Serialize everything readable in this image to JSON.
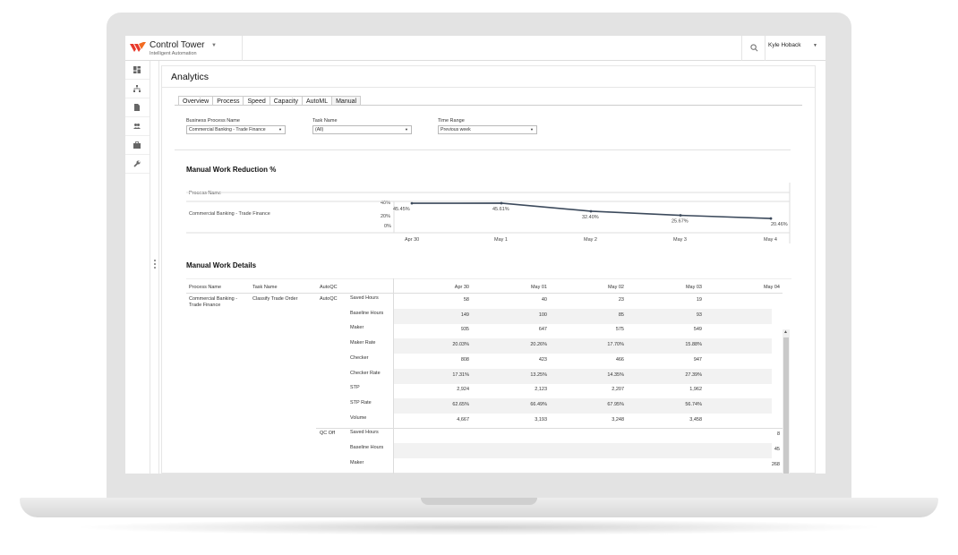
{
  "app": {
    "name": "Control Tower",
    "subtitle": "Intelligent Automation",
    "user": "Kyle Hoback"
  },
  "page": {
    "title": "Analytics",
    "tabs": [
      "Overview",
      "Process",
      "Speed",
      "Capacity",
      "AutoML",
      "Manual"
    ],
    "active_tab": "Manual"
  },
  "filters": {
    "business_process": {
      "label": "Business Process Name",
      "value": "Commercial Banking - Trade Finance"
    },
    "task_name": {
      "label": "Task Name",
      "value": "(All)"
    },
    "time_range": {
      "label": "Time Range",
      "value": "Previous week"
    }
  },
  "reduction": {
    "title": "Manual Work Reduction %",
    "row_header": "Process Name",
    "row_label": "Commercial Banking - Trade Finance",
    "y_ticks": [
      "40%",
      "20%",
      "0%"
    ]
  },
  "chart_data": {
    "type": "line",
    "title": "Manual Work Reduction %",
    "categories": [
      "Apr 30",
      "May 1",
      "May 2",
      "May 3",
      "May 4"
    ],
    "values": [
      45.45,
      45.61,
      32.4,
      25.67,
      20.46
    ],
    "value_labels": [
      "45.45%",
      "45.61%",
      "32.40%",
      "25.67%",
      "20.46%"
    ],
    "ylim": [
      0,
      50
    ],
    "color": "#3c4a5c"
  },
  "details": {
    "title": "Manual Work Details",
    "headers": {
      "process": "Process Name",
      "task": "Task Name",
      "type": "AutoQC"
    },
    "dates": [
      "Apr 30",
      "May 01",
      "May 02",
      "May 03",
      "May 04"
    ],
    "process_name": "Commercial Banking - Trade Finance",
    "task_name": "Classify Trade Order",
    "groups": [
      {
        "name": "AutoQC",
        "rows": [
          {
            "metric": "Saved Hours",
            "values": [
              "58",
              "40",
              "23",
              "19",
              ""
            ]
          },
          {
            "metric": "Baseline Hours",
            "values": [
              "149",
              "100",
              "85",
              "93",
              ""
            ]
          },
          {
            "metric": "Maker",
            "values": [
              "935",
              "647",
              "575",
              "549",
              ""
            ]
          },
          {
            "metric": "Maker Rate",
            "values": [
              "20.03%",
              "20.26%",
              "17.70%",
              "15.88%",
              ""
            ]
          },
          {
            "metric": "Checker",
            "values": [
              "808",
              "423",
              "466",
              "947",
              ""
            ]
          },
          {
            "metric": "Checker Rate",
            "values": [
              "17.31%",
              "13.25%",
              "14.35%",
              "27.39%",
              ""
            ]
          },
          {
            "metric": "STP",
            "values": [
              "2,924",
              "2,123",
              "2,207",
              "1,962",
              ""
            ]
          },
          {
            "metric": "STP Rate",
            "values": [
              "62.65%",
              "66.49%",
              "67.95%",
              "56.74%",
              ""
            ]
          },
          {
            "metric": "Volume",
            "values": [
              "4,667",
              "3,193",
              "3,248",
              "3,458",
              ""
            ]
          }
        ]
      },
      {
        "name": "QC Off",
        "rows": [
          {
            "metric": "Saved Hours",
            "values": [
              "",
              "",
              "",
              "",
              "8"
            ]
          },
          {
            "metric": "Baseline Hours",
            "values": [
              "",
              "",
              "",
              "",
              "45"
            ]
          },
          {
            "metric": "Maker",
            "values": [
              "",
              "",
              "",
              "",
              "268"
            ]
          }
        ]
      }
    ]
  }
}
